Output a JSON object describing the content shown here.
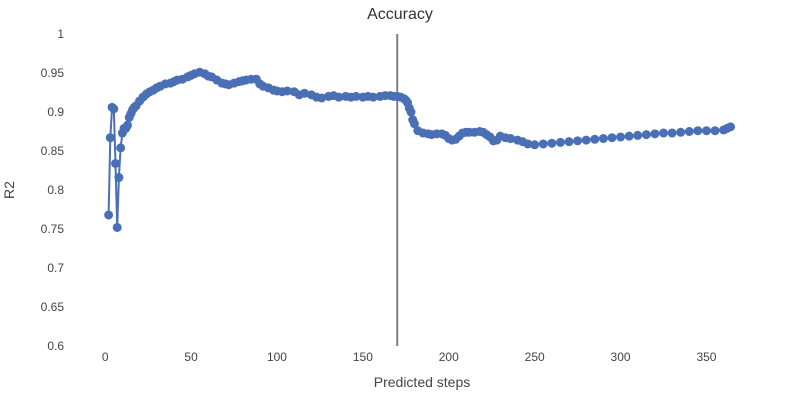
{
  "chart_data": {
    "type": "line",
    "title": "Accuracy",
    "xlabel": "Predicted steps",
    "ylabel": "R2",
    "xlim": [
      -10,
      380
    ],
    "ylim": [
      0.6,
      1.0
    ],
    "xticks": [
      0,
      50,
      100,
      150,
      200,
      250,
      300,
      350
    ],
    "yticks": [
      0.6,
      0.65,
      0.7,
      0.75,
      0.8,
      0.85,
      0.9,
      0.95,
      1.0
    ],
    "ytick_labels": [
      "0.6",
      "0.65",
      "0.7",
      "0.75",
      "0.8",
      "0.85",
      "0.9",
      "0.95",
      "1"
    ],
    "grid": false,
    "legend": "none",
    "colors": {
      "series": "#4a6fb5",
      "reference_line": "#7f7f7f"
    },
    "reference_line": {
      "orientation": "vertical",
      "x": 170
    },
    "series": [
      {
        "x": [
          2,
          3,
          4,
          5,
          6,
          7,
          8,
          9,
          10,
          11,
          12,
          13,
          14,
          15,
          16,
          17,
          18,
          20,
          22,
          24,
          26,
          28,
          30,
          32,
          35,
          38,
          40,
          42,
          45,
          48,
          50,
          52,
          55,
          58,
          60,
          62,
          65,
          68,
          70,
          72,
          75,
          78,
          80,
          82,
          85,
          88,
          90,
          92,
          95,
          98,
          100,
          103,
          106,
          110,
          113,
          116,
          120,
          123,
          126,
          130,
          133,
          136,
          140,
          143,
          146,
          150,
          153,
          156,
          160,
          163,
          166,
          168,
          170,
          172,
          174,
          175,
          176,
          177,
          178,
          179,
          180,
          182,
          185,
          188,
          190,
          193,
          196,
          198,
          200,
          202,
          204,
          206,
          208,
          210,
          212,
          215,
          218,
          220,
          222,
          224,
          226,
          228,
          230,
          233,
          236,
          240,
          243,
          246,
          250,
          255,
          260,
          265,
          270,
          275,
          280,
          285,
          290,
          295,
          300,
          305,
          310,
          315,
          320,
          325,
          330,
          335,
          340,
          345,
          350,
          355,
          360,
          362,
          364
        ],
        "y": [
          0.768,
          0.867,
          0.906,
          0.904,
          0.834,
          0.752,
          0.816,
          0.854,
          0.873,
          0.879,
          0.879,
          0.883,
          0.893,
          0.898,
          0.903,
          0.906,
          0.908,
          0.914,
          0.919,
          0.923,
          0.926,
          0.928,
          0.931,
          0.933,
          0.936,
          0.937,
          0.939,
          0.941,
          0.942,
          0.945,
          0.947,
          0.949,
          0.951,
          0.949,
          0.946,
          0.945,
          0.941,
          0.937,
          0.936,
          0.935,
          0.937,
          0.939,
          0.94,
          0.941,
          0.942,
          0.942,
          0.936,
          0.933,
          0.931,
          0.928,
          0.927,
          0.926,
          0.927,
          0.926,
          0.922,
          0.924,
          0.922,
          0.919,
          0.918,
          0.92,
          0.921,
          0.919,
          0.92,
          0.919,
          0.92,
          0.919,
          0.92,
          0.919,
          0.92,
          0.921,
          0.921,
          0.92,
          0.92,
          0.919,
          0.917,
          0.915,
          0.912,
          0.905,
          0.9,
          0.89,
          0.885,
          0.876,
          0.873,
          0.872,
          0.871,
          0.872,
          0.872,
          0.87,
          0.866,
          0.864,
          0.865,
          0.869,
          0.873,
          0.874,
          0.874,
          0.874,
          0.875,
          0.874,
          0.871,
          0.868,
          0.863,
          0.864,
          0.869,
          0.867,
          0.866,
          0.864,
          0.862,
          0.859,
          0.858,
          0.859,
          0.86,
          0.861,
          0.862,
          0.863,
          0.864,
          0.865,
          0.866,
          0.867,
          0.868,
          0.869,
          0.87,
          0.871,
          0.872,
          0.873,
          0.873,
          0.874,
          0.875,
          0.876,
          0.876,
          0.876,
          0.877,
          0.879,
          0.881
        ]
      }
    ]
  }
}
